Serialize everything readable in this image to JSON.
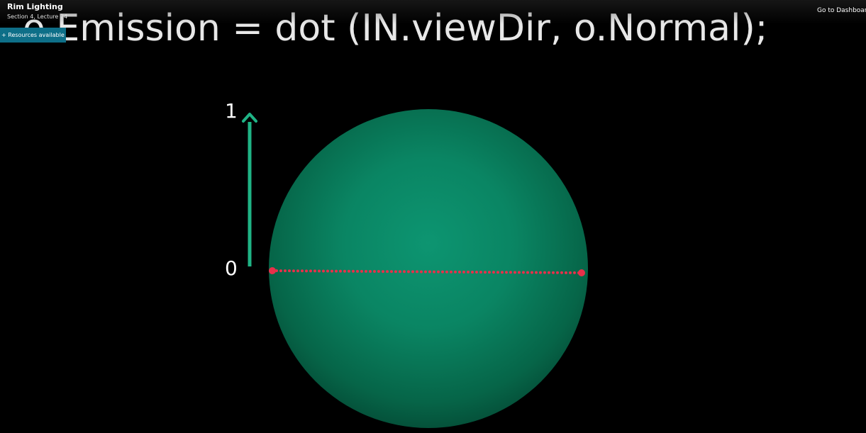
{
  "player": {
    "lecture_title": "Rim Lighting",
    "lecture_subtitle": "Section 4, Lecture 24",
    "resources_label": "+ Resources available",
    "dashboard_link": "Go to Dashboard"
  },
  "slide": {
    "code_line": "o.Emission =  dot (IN.viewDir, o.Normal);",
    "axis_top_label": "1",
    "axis_bottom_label": "0",
    "colors": {
      "sphere": "#0a8563",
      "arrow": "#1fb385",
      "dotted_line": "#e8304a",
      "background": "#000000"
    }
  }
}
